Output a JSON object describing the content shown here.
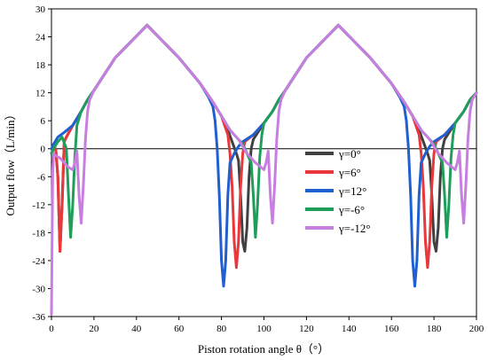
{
  "chart_data": {
    "type": "line",
    "xlabel": "Piston rotation angle θ（°）",
    "ylabel": "Output flow（L/min）",
    "xlim": [
      0,
      200
    ],
    "ylim": [
      -36,
      30
    ],
    "xticks": [
      0,
      20,
      40,
      60,
      80,
      100,
      120,
      140,
      160,
      180,
      200
    ],
    "yticks": [
      -36,
      -30,
      -24,
      -18,
      -12,
      -6,
      0,
      6,
      12,
      18,
      24,
      30
    ],
    "grid": false,
    "legend_position": "right",
    "series": [
      {
        "name": "γ=0°",
        "color": "#404040",
        "points": [
          [
            0,
            -1
          ],
          [
            1,
            0
          ],
          [
            2,
            0
          ],
          [
            3,
            -6
          ],
          [
            4,
            -22
          ],
          [
            5,
            -12
          ],
          [
            6,
            1.5
          ],
          [
            7,
            2.5
          ],
          [
            10,
            5
          ],
          [
            14,
            8
          ],
          [
            17,
            10.5
          ],
          [
            20,
            12.5
          ],
          [
            30,
            19.5
          ],
          [
            45,
            26.5
          ],
          [
            60,
            19.5
          ],
          [
            70,
            14
          ],
          [
            76,
            10
          ],
          [
            80,
            7
          ],
          [
            83,
            4
          ],
          [
            85,
            1.5
          ],
          [
            87,
            -1
          ],
          [
            88,
            -2.5
          ],
          [
            89,
            -10
          ],
          [
            90,
            -20
          ],
          [
            91,
            -22
          ],
          [
            92,
            -17
          ],
          [
            93,
            -6
          ],
          [
            94,
            0
          ],
          [
            95,
            2
          ],
          [
            100,
            5.5
          ],
          [
            104,
            8
          ],
          [
            107,
            10.5
          ],
          [
            110,
            12.5
          ],
          [
            120,
            19.5
          ],
          [
            135,
            26.5
          ],
          [
            150,
            19.5
          ],
          [
            160,
            14
          ],
          [
            166,
            10
          ],
          [
            170,
            7
          ],
          [
            173,
            4
          ],
          [
            175,
            1.5
          ],
          [
            177,
            -1
          ],
          [
            178,
            -2.5
          ],
          [
            179,
            -10
          ],
          [
            180,
            -20
          ],
          [
            181,
            -22
          ],
          [
            182,
            -17
          ],
          [
            183,
            -6
          ],
          [
            184,
            0
          ],
          [
            185,
            2
          ],
          [
            190,
            5.5
          ],
          [
            194,
            8
          ],
          [
            197,
            10.5
          ],
          [
            200,
            12
          ]
        ]
      },
      {
        "name": "γ=6°",
        "color": "#e8383c",
        "points": [
          [
            0,
            -1
          ],
          [
            1,
            0
          ],
          [
            2,
            0
          ],
          [
            3,
            -6
          ],
          [
            4,
            -22
          ],
          [
            5,
            -12
          ],
          [
            6,
            1.5
          ],
          [
            7,
            2.5
          ],
          [
            10,
            5
          ],
          [
            14,
            8
          ],
          [
            17,
            10.5
          ],
          [
            20,
            12.5
          ],
          [
            30,
            19.5
          ],
          [
            45,
            26.5
          ],
          [
            60,
            19.5
          ],
          [
            70,
            14
          ],
          [
            76,
            10
          ],
          [
            80,
            7
          ],
          [
            83,
            3
          ],
          [
            84,
            -1
          ],
          [
            85,
            -8
          ],
          [
            86,
            -20
          ],
          [
            87,
            -25.5
          ],
          [
            88,
            -20
          ],
          [
            89,
            -8
          ],
          [
            90,
            -1
          ],
          [
            91,
            1.5
          ],
          [
            95,
            3
          ],
          [
            100,
            5.5
          ],
          [
            104,
            8
          ],
          [
            107,
            10.5
          ],
          [
            110,
            12.5
          ],
          [
            120,
            19.5
          ],
          [
            135,
            26.5
          ],
          [
            150,
            19.5
          ],
          [
            160,
            14
          ],
          [
            166,
            10
          ],
          [
            170,
            7
          ],
          [
            173,
            3
          ],
          [
            174,
            -1
          ],
          [
            175,
            -8
          ],
          [
            176,
            -20
          ],
          [
            177,
            -25.5
          ],
          [
            178,
            -20
          ],
          [
            179,
            -8
          ],
          [
            180,
            -1
          ],
          [
            181,
            1.5
          ],
          [
            185,
            3
          ],
          [
            190,
            5.5
          ],
          [
            194,
            8
          ],
          [
            197,
            10.5
          ],
          [
            200,
            12
          ]
        ]
      },
      {
        "name": "γ=12°",
        "color": "#1f5fd0",
        "points": [
          [
            0,
            0
          ],
          [
            1,
            1
          ],
          [
            3,
            2.5
          ],
          [
            6,
            3.5
          ],
          [
            10,
            5
          ],
          [
            14,
            8
          ],
          [
            17,
            10.5
          ],
          [
            20,
            12.5
          ],
          [
            30,
            19.5
          ],
          [
            45,
            26.5
          ],
          [
            60,
            19.5
          ],
          [
            70,
            14
          ],
          [
            74,
            11
          ],
          [
            76,
            9
          ],
          [
            77,
            6
          ],
          [
            78,
            0
          ],
          [
            79,
            -10
          ],
          [
            80,
            -24
          ],
          [
            81,
            -29.5
          ],
          [
            82,
            -24
          ],
          [
            83,
            -10
          ],
          [
            84,
            -3
          ],
          [
            86,
            -1
          ],
          [
            88,
            0.5
          ],
          [
            90,
            1.5
          ],
          [
            95,
            3
          ],
          [
            100,
            5.5
          ],
          [
            104,
            8
          ],
          [
            107,
            10.5
          ],
          [
            110,
            12.5
          ],
          [
            120,
            19.5
          ],
          [
            135,
            26.5
          ],
          [
            150,
            19.5
          ],
          [
            160,
            14
          ],
          [
            164,
            11
          ],
          [
            166,
            9
          ],
          [
            167,
            6
          ],
          [
            168,
            0
          ],
          [
            169,
            -10
          ],
          [
            170,
            -24
          ],
          [
            171,
            -29.5
          ],
          [
            172,
            -24
          ],
          [
            173,
            -10
          ],
          [
            174,
            -3
          ],
          [
            176,
            -1
          ],
          [
            178,
            0.5
          ],
          [
            180,
            1.5
          ],
          [
            185,
            3
          ],
          [
            190,
            5.5
          ],
          [
            194,
            8
          ],
          [
            197,
            10.5
          ],
          [
            200,
            12
          ]
        ]
      },
      {
        "name": "γ=-6°",
        "color": "#1f9e5a",
        "points": [
          [
            0,
            -1
          ],
          [
            1,
            0
          ],
          [
            3,
            1.5
          ],
          [
            5,
            2.5
          ],
          [
            7,
            0
          ],
          [
            8,
            -10
          ],
          [
            9,
            -19
          ],
          [
            10,
            -12
          ],
          [
            11,
            -2
          ],
          [
            12,
            5
          ],
          [
            14,
            8
          ],
          [
            17,
            10.5
          ],
          [
            20,
            12.5
          ],
          [
            30,
            19.5
          ],
          [
            45,
            26.5
          ],
          [
            60,
            19.5
          ],
          [
            70,
            14
          ],
          [
            76,
            10
          ],
          [
            80,
            7
          ],
          [
            84,
            4
          ],
          [
            88,
            2
          ],
          [
            90,
            1
          ],
          [
            92,
            -1
          ],
          [
            94,
            -3
          ],
          [
            95,
            -10
          ],
          [
            96,
            -19
          ],
          [
            97,
            -12
          ],
          [
            98,
            -2
          ],
          [
            99,
            3
          ],
          [
            100,
            5.5
          ],
          [
            104,
            8
          ],
          [
            107,
            10.5
          ],
          [
            110,
            12.5
          ],
          [
            120,
            19.5
          ],
          [
            135,
            26.5
          ],
          [
            150,
            19.5
          ],
          [
            160,
            14
          ],
          [
            166,
            10
          ],
          [
            170,
            7
          ],
          [
            174,
            4
          ],
          [
            178,
            2
          ],
          [
            180,
            1
          ],
          [
            182,
            -1
          ],
          [
            184,
            -3
          ],
          [
            185,
            -10
          ],
          [
            186,
            -19
          ],
          [
            187,
            -12
          ],
          [
            188,
            -2
          ],
          [
            189,
            3
          ],
          [
            190,
            5.5
          ],
          [
            194,
            8
          ],
          [
            197,
            10.5
          ],
          [
            200,
            12
          ]
        ]
      },
      {
        "name": "γ=-12°",
        "color": "#c77ee0",
        "points": [
          [
            0,
            -35.5
          ],
          [
            0.3,
            -20
          ],
          [
            0.6,
            -5
          ],
          [
            1,
            -1
          ],
          [
            2,
            -1.5
          ],
          [
            4,
            -2
          ],
          [
            6,
            -3
          ],
          [
            8,
            -4
          ],
          [
            10,
            -4.5
          ],
          [
            11,
            -3
          ],
          [
            12,
            -0.5
          ],
          [
            13,
            -10
          ],
          [
            14,
            -16
          ],
          [
            15,
            -8
          ],
          [
            16,
            2
          ],
          [
            17,
            8
          ],
          [
            18,
            10.5
          ],
          [
            20,
            12.5
          ],
          [
            30,
            19.5
          ],
          [
            45,
            26.5
          ],
          [
            60,
            19.5
          ],
          [
            70,
            14
          ],
          [
            76,
            10
          ],
          [
            80,
            7
          ],
          [
            84,
            4
          ],
          [
            88,
            2
          ],
          [
            92,
            -1
          ],
          [
            96,
            -3
          ],
          [
            100,
            -4.5
          ],
          [
            101,
            -3
          ],
          [
            102,
            -0.5
          ],
          [
            103,
            -10
          ],
          [
            104,
            -16
          ],
          [
            105,
            -8
          ],
          [
            106,
            2
          ],
          [
            107,
            8
          ],
          [
            108,
            10.5
          ],
          [
            110,
            12.5
          ],
          [
            120,
            19.5
          ],
          [
            135,
            26.5
          ],
          [
            150,
            19.5
          ],
          [
            160,
            14
          ],
          [
            166,
            10
          ],
          [
            170,
            7
          ],
          [
            174,
            4
          ],
          [
            178,
            2
          ],
          [
            182,
            -1
          ],
          [
            186,
            -3
          ],
          [
            190,
            -4.5
          ],
          [
            191,
            -3
          ],
          [
            192,
            -0.5
          ],
          [
            193,
            -10
          ],
          [
            194,
            -16
          ],
          [
            195,
            -8
          ],
          [
            196,
            2
          ],
          [
            197,
            8
          ],
          [
            198,
            10.5
          ],
          [
            200,
            12
          ]
        ]
      }
    ]
  }
}
